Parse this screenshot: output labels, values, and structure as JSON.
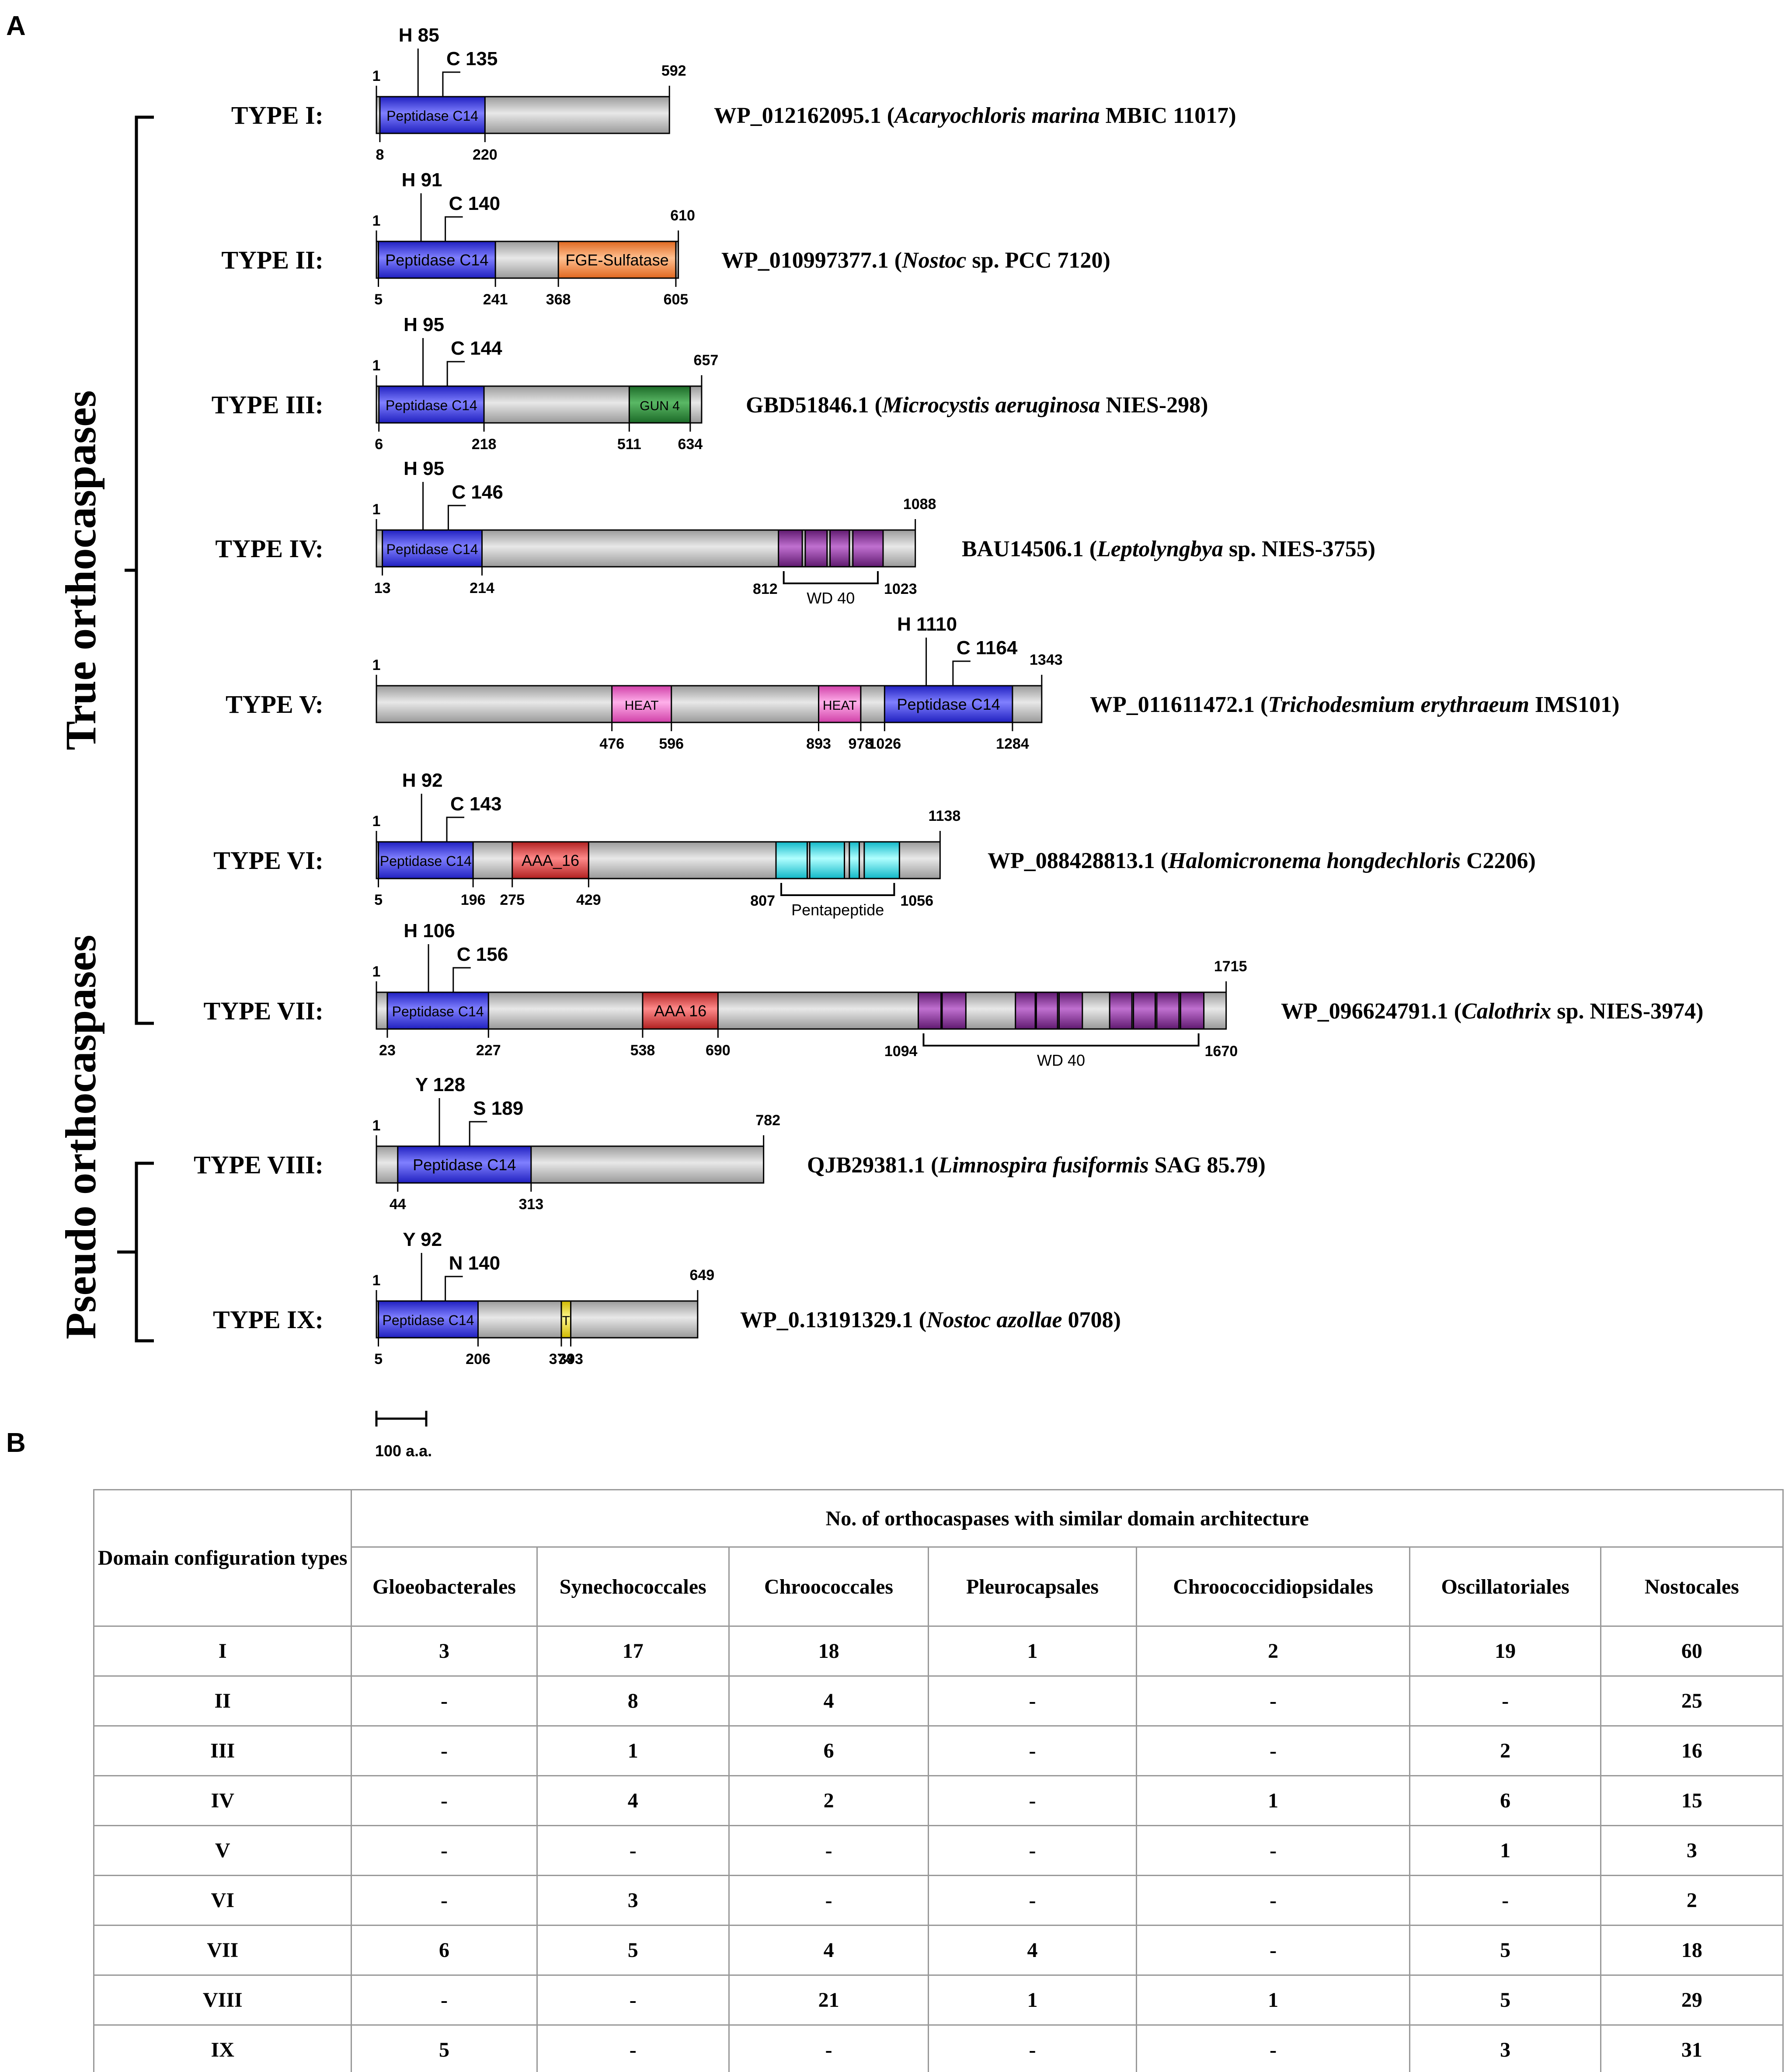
{
  "panel_a_label": "A",
  "panel_b_label": "B",
  "group_labels": {
    "true": "True orthocaspases",
    "pseudo": "Pseudo orthocaspases"
  },
  "scale_bar": "100 a.a.",
  "colors": {
    "peptidase": "#3a3af0",
    "fge": "#f5955a",
    "gun4": "#2f8a3c",
    "wd40": "#8e2e9e",
    "heat": "#f07ad0",
    "aaa16": "#e04848",
    "pentapeptide": "#40e8f0",
    "tm": "#f0e040",
    "backbone": "#bdbdbd"
  },
  "types": [
    {
      "label": "TYPE I:",
      "accession": "WP_012162095.1 (",
      "species": "Acaryochloris marina",
      "strain": " MBIC 11017)",
      "length": "592",
      "start": "1",
      "sites": [
        {
          "res": "H 85"
        },
        {
          "res": "C 135"
        }
      ],
      "domains": [
        {
          "name": "Peptidase C14",
          "from": "8",
          "to": "220"
        }
      ]
    },
    {
      "label": "TYPE II:",
      "accession": "WP_010997377.1 (",
      "species": "Nostoc",
      "strain": " sp. PCC 7120)",
      "length": "610",
      "start": "1",
      "sites": [
        {
          "res": "H 91"
        },
        {
          "res": "C 140"
        }
      ],
      "domains": [
        {
          "name": "Peptidase C14",
          "from": "5",
          "to": "241"
        },
        {
          "name": "FGE-Sulfatase",
          "from": "368",
          "to": "605"
        }
      ]
    },
    {
      "label": "TYPE III:",
      "accession": "GBD51846.1 (",
      "species": "Microcystis aeruginosa",
      "strain": " NIES-298)",
      "length": "657",
      "start": "1",
      "sites": [
        {
          "res": "H 95"
        },
        {
          "res": "C 144"
        }
      ],
      "domains": [
        {
          "name": "Peptidase C14",
          "from": "6",
          "to": "218"
        },
        {
          "name": "GUN 4",
          "from": "511",
          "to": "634"
        }
      ]
    },
    {
      "label": "TYPE IV:",
      "accession": "BAU14506.1 (",
      "species": "Leptolyngbya",
      "strain": " sp. NIES-3755)",
      "length": "1088",
      "start": "1",
      "sites": [
        {
          "res": "H 95"
        },
        {
          "res": "C 146"
        }
      ],
      "domains": [
        {
          "name": "Peptidase C14",
          "from": "13",
          "to": "214"
        },
        {
          "name": "WD 40",
          "from": "812",
          "to": "1023"
        }
      ]
    },
    {
      "label": "TYPE V:",
      "accession": "WP_011611472.1 (",
      "species": "Trichodesmium erythraeum",
      "strain": " IMS101)",
      "length": "1343",
      "start": "1",
      "sites": [
        {
          "res": "H 1110"
        },
        {
          "res": "C 1164"
        }
      ],
      "domains": [
        {
          "name": "HEAT",
          "from": "476",
          "to": "596"
        },
        {
          "name": "HEAT",
          "from": "893",
          "to": "978"
        },
        {
          "name": "Peptidase C14",
          "from": "1026",
          "to": "1284"
        }
      ]
    },
    {
      "label": "TYPE VI:",
      "accession": "WP_088428813.1 (",
      "species": "Halomicronema hongdechloris",
      "strain": " C2206)",
      "length": "1138",
      "start": "1",
      "sites": [
        {
          "res": "H 92"
        },
        {
          "res": "C 143"
        }
      ],
      "domains": [
        {
          "name": "Peptidase C14",
          "from": "5",
          "to": "196"
        },
        {
          "name": "AAA_16",
          "from": "275",
          "to": "429"
        },
        {
          "name": "Pentapeptide",
          "from": "807",
          "to": "1056"
        }
      ]
    },
    {
      "label": "TYPE VII:",
      "accession": "WP_096624791.1 (",
      "species": "Calothrix",
      "strain": " sp. NIES-3974)",
      "length": "1715",
      "start": "1",
      "sites": [
        {
          "res": "H 106"
        },
        {
          "res": "C 156"
        }
      ],
      "domains": [
        {
          "name": "Peptidase C14",
          "from": "23",
          "to": "227"
        },
        {
          "name": "AAA 16",
          "from": "538",
          "to": "690"
        },
        {
          "name": "WD 40",
          "from": "1094",
          "to": "1670"
        }
      ]
    },
    {
      "label": "TYPE VIII:",
      "accession": "QJB29381.1 (",
      "species": "Limnospira fusiformis",
      "strain": " SAG 85.79)",
      "length": "782",
      "start": "1",
      "sites": [
        {
          "res": "Y 128"
        },
        {
          "res": "S 189"
        }
      ],
      "domains": [
        {
          "name": "Peptidase C14",
          "from": "44",
          "to": "313"
        }
      ]
    },
    {
      "label": "TYPE IX:",
      "accession": "WP_0.13191329.1 (",
      "species": "Nostoc azollae",
      "strain": "  0708)",
      "length": "649",
      "start": "1",
      "sites": [
        {
          "res": "Y 92"
        },
        {
          "res": "N 140"
        }
      ],
      "domains": [
        {
          "name": "Peptidase C14",
          "from": "5",
          "to": "206"
        },
        {
          "name": "T",
          "from": "374",
          "to": "393"
        }
      ]
    }
  ],
  "table": {
    "row_header": "Domain configuration types",
    "group_header": "No. of orthocaspases with similar domain architecture",
    "columns": [
      "Gloeobacterales",
      "Synechococcales",
      "Chroococcales",
      "Pleurocapsales",
      "Chroococcidiopsidales",
      "Oscillatoriales",
      "Nostocales"
    ],
    "rows": [
      {
        "type": "I",
        "values": [
          "3",
          "17",
          "18",
          "1",
          "2",
          "19",
          "60"
        ]
      },
      {
        "type": "II",
        "values": [
          "-",
          "8",
          "4",
          "-",
          "-",
          "-",
          "25"
        ]
      },
      {
        "type": "III",
        "values": [
          "-",
          "1",
          "6",
          "-",
          "-",
          "2",
          "16"
        ]
      },
      {
        "type": "IV",
        "values": [
          "-",
          "4",
          "2",
          "-",
          "1",
          "6",
          "15"
        ]
      },
      {
        "type": "V",
        "values": [
          "-",
          "-",
          "-",
          "-",
          "-",
          "1",
          "3"
        ]
      },
      {
        "type": "VI",
        "values": [
          "-",
          "3",
          "-",
          "-",
          "-",
          "-",
          "2"
        ]
      },
      {
        "type": "VII",
        "values": [
          "6",
          "5",
          "4",
          "4",
          "-",
          "5",
          "18"
        ]
      },
      {
        "type": "VIII",
        "values": [
          "-",
          "-",
          "21",
          "1",
          "1",
          "5",
          "29"
        ]
      },
      {
        "type": "IX",
        "values": [
          "5",
          "-",
          "-",
          "-",
          "-",
          "3",
          "31"
        ]
      }
    ]
  }
}
